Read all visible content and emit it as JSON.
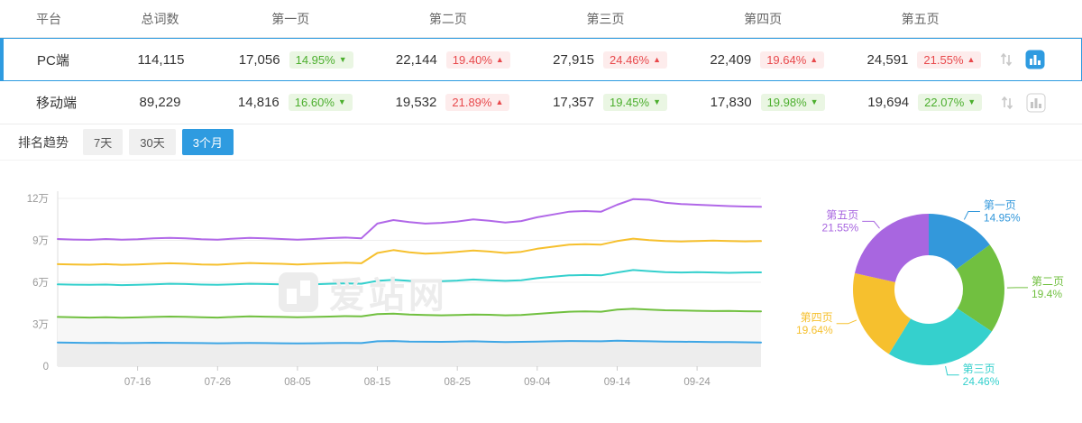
{
  "table": {
    "headers": {
      "platform": "平台",
      "total": "总词数",
      "page1": "第一页",
      "page2": "第二页",
      "page3": "第三页",
      "page4": "第四页",
      "page5": "第五页"
    },
    "rows": [
      {
        "platform": "PC端",
        "total": "114,115",
        "pages": [
          {
            "count": "17,056",
            "pct": "14.95%",
            "dir": "down"
          },
          {
            "count": "22,144",
            "pct": "19.40%",
            "dir": "up"
          },
          {
            "count": "27,915",
            "pct": "24.46%",
            "dir": "up"
          },
          {
            "count": "22,409",
            "pct": "19.64%",
            "dir": "up"
          },
          {
            "count": "24,591",
            "pct": "21.55%",
            "dir": "up"
          }
        ]
      },
      {
        "platform": "移动端",
        "total": "89,229",
        "pages": [
          {
            "count": "14,816",
            "pct": "16.60%",
            "dir": "down"
          },
          {
            "count": "19,532",
            "pct": "21.89%",
            "dir": "up"
          },
          {
            "count": "17,357",
            "pct": "19.45%",
            "dir": "down"
          },
          {
            "count": "17,830",
            "pct": "19.98%",
            "dir": "down"
          },
          {
            "count": "19,694",
            "pct": "22.07%",
            "dir": "down"
          }
        ]
      }
    ]
  },
  "trend": {
    "title": "排名趋势",
    "tabs": [
      {
        "label": "7天",
        "active": false
      },
      {
        "label": "30天",
        "active": false
      },
      {
        "label": "3个月",
        "active": true
      }
    ]
  },
  "watermark": "爱站网",
  "colors": {
    "accent": "#2e9be0",
    "badge_up_text": "#e8494c",
    "badge_up_bg": "#fdecec",
    "badge_down_text": "#4caf2e",
    "badge_down_bg": "#eaf6e3"
  },
  "chart_data": [
    {
      "type": "line",
      "title": "排名趋势(3个月)",
      "stacked_cumulative": true,
      "grid": true,
      "unit": "万",
      "ylim": [
        0,
        12.8
      ],
      "y_ticks": [
        {
          "value": 0,
          "label": "0"
        },
        {
          "value": 3,
          "label": "3万"
        },
        {
          "value": 6,
          "label": "6万"
        },
        {
          "value": 9,
          "label": "9万"
        },
        {
          "value": 12,
          "label": "12万"
        }
      ],
      "x_ticks": [
        {
          "index": 5,
          "label": "07-16"
        },
        {
          "index": 10,
          "label": "07-26"
        },
        {
          "index": 15,
          "label": "08-05"
        },
        {
          "index": 20,
          "label": "08-15"
        },
        {
          "index": 25,
          "label": "08-25"
        },
        {
          "index": 30,
          "label": "09-04"
        },
        {
          "index": 35,
          "label": "09-14"
        },
        {
          "index": 40,
          "label": "09-24"
        }
      ],
      "series": [
        {
          "name": "page1",
          "color": "#3ea6e5",
          "values": [
            1.7,
            1.68,
            1.66,
            1.67,
            1.65,
            1.66,
            1.68,
            1.67,
            1.66,
            1.65,
            1.64,
            1.65,
            1.66,
            1.65,
            1.64,
            1.63,
            1.64,
            1.65,
            1.66,
            1.65,
            1.78,
            1.8,
            1.76,
            1.75,
            1.74,
            1.76,
            1.78,
            1.75,
            1.73,
            1.74,
            1.76,
            1.78,
            1.8,
            1.79,
            1.78,
            1.82,
            1.8,
            1.78,
            1.76,
            1.75,
            1.74,
            1.73,
            1.72,
            1.71,
            1.7
          ]
        },
        {
          "name": "page2",
          "color": "#71c040",
          "values": [
            3.52,
            3.5,
            3.48,
            3.5,
            3.47,
            3.49,
            3.52,
            3.55,
            3.53,
            3.5,
            3.48,
            3.52,
            3.56,
            3.54,
            3.52,
            3.5,
            3.52,
            3.55,
            3.58,
            3.56,
            3.72,
            3.76,
            3.7,
            3.66,
            3.64,
            3.66,
            3.7,
            3.68,
            3.64,
            3.66,
            3.74,
            3.82,
            3.9,
            3.92,
            3.9,
            4.05,
            4.1,
            4.05,
            4.0,
            3.98,
            3.96,
            3.94,
            3.95,
            3.93,
            3.92
          ]
        },
        {
          "name": "page3",
          "color": "#35d0cd",
          "values": [
            5.85,
            5.83,
            5.82,
            5.84,
            5.8,
            5.82,
            5.86,
            5.9,
            5.88,
            5.84,
            5.82,
            5.86,
            5.9,
            5.88,
            5.86,
            5.84,
            5.86,
            5.9,
            5.92,
            5.9,
            6.1,
            6.18,
            6.1,
            6.05,
            6.08,
            6.12,
            6.2,
            6.15,
            6.1,
            6.15,
            6.3,
            6.4,
            6.5,
            6.52,
            6.5,
            6.7,
            6.88,
            6.8,
            6.72,
            6.7,
            6.72,
            6.7,
            6.68,
            6.7,
            6.71
          ]
        },
        {
          "name": "page4",
          "color": "#f6c02e",
          "values": [
            7.3,
            7.28,
            7.26,
            7.3,
            7.25,
            7.28,
            7.32,
            7.36,
            7.33,
            7.28,
            7.26,
            7.32,
            7.38,
            7.35,
            7.32,
            7.28,
            7.32,
            7.36,
            7.4,
            7.36,
            8.1,
            8.3,
            8.15,
            8.05,
            8.1,
            8.18,
            8.28,
            8.2,
            8.1,
            8.18,
            8.4,
            8.55,
            8.7,
            8.72,
            8.7,
            8.95,
            9.12,
            9.02,
            8.95,
            8.92,
            8.95,
            8.98,
            8.95,
            8.93,
            8.95
          ]
        },
        {
          "name": "page5",
          "color": "#b168e8",
          "values": [
            9.1,
            9.06,
            9.04,
            9.1,
            9.05,
            9.08,
            9.14,
            9.18,
            9.14,
            9.08,
            9.05,
            9.12,
            9.18,
            9.15,
            9.1,
            9.05,
            9.1,
            9.16,
            9.2,
            9.15,
            10.2,
            10.45,
            10.3,
            10.2,
            10.25,
            10.35,
            10.5,
            10.4,
            10.28,
            10.38,
            10.65,
            10.85,
            11.05,
            11.1,
            11.05,
            11.55,
            11.95,
            11.9,
            11.7,
            11.6,
            11.55,
            11.5,
            11.45,
            11.42,
            11.4
          ]
        }
      ]
    },
    {
      "type": "pie",
      "donut": true,
      "segments": [
        {
          "label": "第一页",
          "value": 14.95,
          "pct_label": "14.95%",
          "color": "#3398db"
        },
        {
          "label": "第二页",
          "value": 19.4,
          "pct_label": "19.4%",
          "color": "#71c040"
        },
        {
          "label": "第三页",
          "value": 24.46,
          "pct_label": "24.46%",
          "color": "#35d0cd"
        },
        {
          "label": "第四页",
          "value": 19.64,
          "pct_label": "19.64%",
          "color": "#f6c02e"
        },
        {
          "label": "第五页",
          "value": 21.55,
          "pct_label": "21.55%",
          "color": "#a866e0"
        }
      ]
    }
  ]
}
